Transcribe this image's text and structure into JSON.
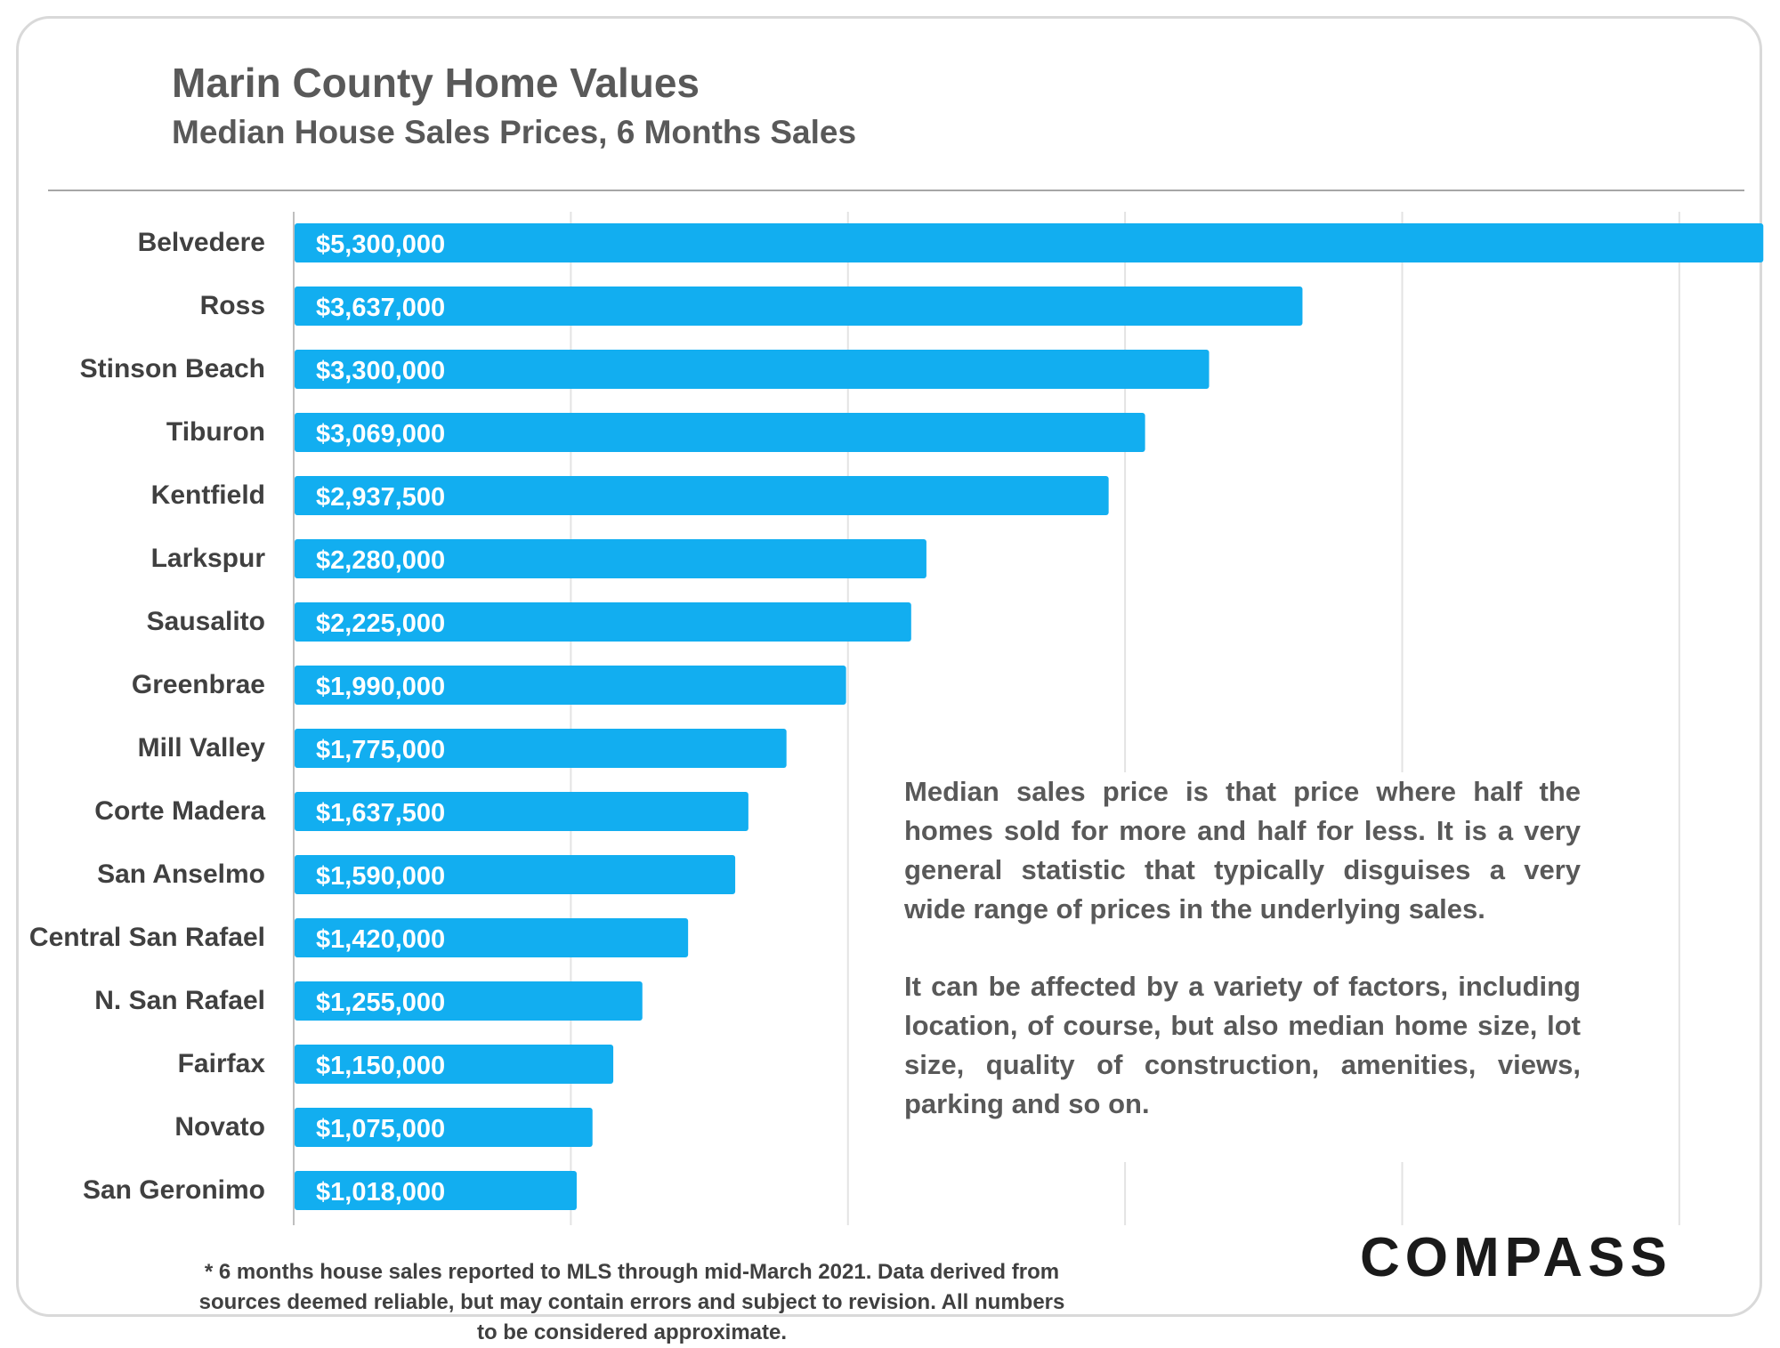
{
  "chart_data": {
    "type": "bar",
    "orientation": "horizontal",
    "title": "Marin County Home Values",
    "subtitle": "Median House Sales Prices, 6 Months Sales",
    "categories": [
      "Belvedere",
      "Ross",
      "Stinson Beach",
      "Tiburon",
      "Kentfield",
      "Larkspur",
      "Sausalito",
      "Greenbrae",
      "Mill Valley",
      "Corte Madera",
      "San Anselmo",
      "Central San Rafael",
      "N. San Rafael",
      "Fairfax",
      "Novato",
      "San Geronimo"
    ],
    "values": [
      5300000,
      3637000,
      3300000,
      3069000,
      2937500,
      2280000,
      2225000,
      1990000,
      1775000,
      1637500,
      1590000,
      1420000,
      1255000,
      1150000,
      1075000,
      1018000
    ],
    "value_labels": [
      "$5,300,000",
      "$3,637,000",
      "$3,300,000",
      "$3,069,000",
      "$2,937,500",
      "$2,280,000",
      "$2,225,000",
      "$1,990,000",
      "$1,775,000",
      "$1,637,500",
      "$1,590,000",
      "$1,420,000",
      "$1,255,000",
      "$1,150,000",
      "$1,075,000",
      "$1,018,000"
    ],
    "xlim": [
      0,
      5100000
    ],
    "grid": true,
    "legend": "none",
    "bar_color": "#12aef0"
  },
  "notes": {
    "paragraph_1": "Median sales price is that price where half the homes sold for more and half for less. It is a very general statistic that typically disguises a very wide range of prices in the underlying sales.",
    "paragraph_2": "It can be affected by a variety of factors, including location, of course, but also median home size, lot size, quality of construction, amenities, views, parking and so on."
  },
  "footnote": "* 6 months house sales reported to MLS through mid-March 2021. Data derived from sources deemed reliable, but may contain errors and subject to revision. All numbers to be considered approximate.",
  "brand": {
    "logo_text": "COMPASS",
    "logo_icon": "compass-o-icon"
  }
}
